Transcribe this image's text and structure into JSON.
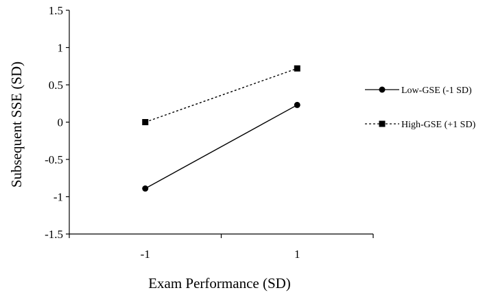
{
  "chart_data": {
    "type": "line",
    "title": "",
    "xlabel": "Exam Performance (SD)",
    "ylabel": "Subsequent SSE (SD)",
    "x": [
      -1,
      1
    ],
    "x_tick_labels": [
      "-1",
      "1"
    ],
    "xlim": [
      -2,
      2
    ],
    "ylim": [
      -1.5,
      1.5
    ],
    "y_ticks": [
      1.5,
      1,
      0.5,
      0,
      -0.5,
      -1,
      -1.5
    ],
    "y_tick_labels": [
      "1.5",
      "1",
      "0.5",
      "0",
      "-0.5",
      "-1",
      "-1.5"
    ],
    "grid": false,
    "legend_position": "right",
    "series": [
      {
        "name": "Low-GSE (-1 SD)",
        "values": [
          -0.89,
          0.23
        ],
        "marker": "circle",
        "line_style": "solid",
        "color": "#000000"
      },
      {
        "name": "High-GSE (+1 SD)",
        "values": [
          0.0,
          0.72
        ],
        "marker": "square",
        "line_style": "dotted",
        "color": "#000000"
      }
    ]
  }
}
